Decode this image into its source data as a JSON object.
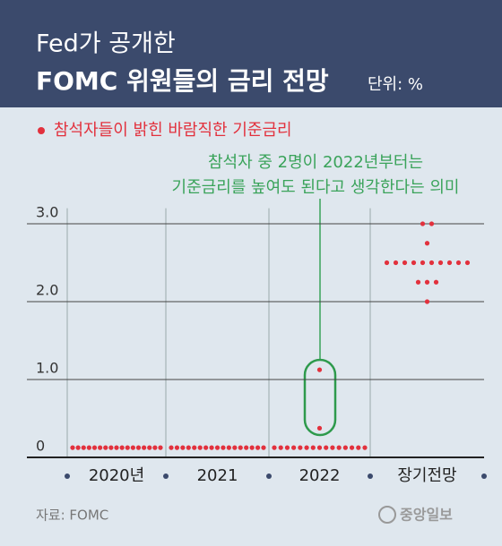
{
  "chart_data": {
    "type": "dot",
    "title": "Fed가 공개한",
    "subtitle": "FOMC 위원들의 금리 전망",
    "unit": "단위: %",
    "categories": [
      "2020년",
      "2021",
      "2022",
      "장기전망"
    ],
    "series": [
      {
        "name": "참석자들이 밝힌 바람직한 기준금리",
        "color": "#e2313d",
        "values": [
          [
            0.125,
            0.125,
            0.125,
            0.125,
            0.125,
            0.125,
            0.125,
            0.125,
            0.125,
            0.125,
            0.125,
            0.125,
            0.125,
            0.125,
            0.125,
            0.125,
            0.125
          ],
          [
            0.125,
            0.125,
            0.125,
            0.125,
            0.125,
            0.125,
            0.125,
            0.125,
            0.125,
            0.125,
            0.125,
            0.125,
            0.125,
            0.125,
            0.125,
            0.125,
            0.125
          ],
          [
            1.125,
            0.375,
            0.125,
            0.125,
            0.125,
            0.125,
            0.125,
            0.125,
            0.125,
            0.125,
            0.125,
            0.125,
            0.125,
            0.125,
            0.125,
            0.125,
            0.125
          ],
          [
            3,
            3,
            2.75,
            2.5,
            2.5,
            2.5,
            2.5,
            2.5,
            2.5,
            2.5,
            2.5,
            2.5,
            2.5,
            2.25,
            2.25,
            2.25,
            2
          ]
        ]
      }
    ],
    "ylim": [
      0,
      3.2
    ],
    "yticks": [
      0,
      {
        "value": 1,
        "label": "1.0"
      },
      {
        "value": 2,
        "label": "2.0"
      },
      {
        "value": 3,
        "label": "3.0"
      }
    ],
    "grid": true,
    "annotation": [
      "참석자 중 2명이 2022년부터는",
      "기준금리를 높여도 된다고 생각한다는 의미"
    ],
    "source": "자료: FOMC",
    "logo": "중앙일보"
  }
}
